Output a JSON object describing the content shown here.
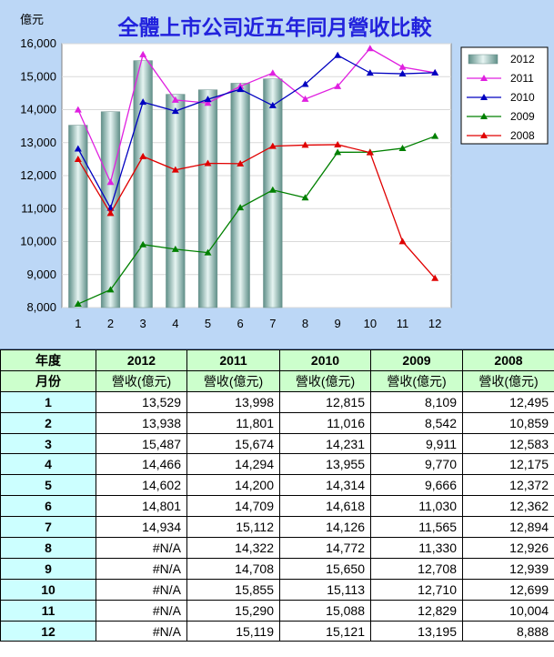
{
  "chart_data": {
    "type": "bar",
    "title": "全體上市公司近五年同月營收比較",
    "ylabel": "億元",
    "ylim": [
      8000,
      16000
    ],
    "y_ticks": [
      8000,
      9000,
      10000,
      11000,
      12000,
      13000,
      14000,
      15000,
      16000
    ],
    "y_tick_labels": [
      "8,000",
      "9,000",
      "10,000",
      "11,000",
      "12,000",
      "13,000",
      "14,000",
      "15,000",
      "16,000"
    ],
    "categories": [
      "1",
      "2",
      "3",
      "4",
      "5",
      "6",
      "7",
      "8",
      "9",
      "10",
      "11",
      "12"
    ],
    "grid": true,
    "legend_position": "right",
    "series": [
      {
        "name": "2012",
        "kind": "bar",
        "color": "#8fb8b0",
        "values": [
          13529,
          13938,
          15487,
          14466,
          14602,
          14801,
          14934,
          null,
          null,
          null,
          null,
          null
        ]
      },
      {
        "name": "2011",
        "kind": "line",
        "marker": "triangle",
        "color": "#e020e0",
        "values": [
          13998,
          11801,
          15674,
          14294,
          14200,
          14709,
          15112,
          14322,
          14708,
          15855,
          15290,
          15119
        ]
      },
      {
        "name": "2010",
        "kind": "line",
        "marker": "triangle",
        "color": "#0000c0",
        "values": [
          12815,
          11016,
          14231,
          13955,
          14314,
          14618,
          14126,
          14772,
          15650,
          15113,
          15088,
          15121
        ]
      },
      {
        "name": "2009",
        "kind": "line",
        "marker": "triangle",
        "color": "#008000",
        "values": [
          8109,
          8542,
          9911,
          9770,
          9666,
          11030,
          11565,
          11330,
          12708,
          12710,
          12829,
          13195
        ]
      },
      {
        "name": "2008",
        "kind": "line",
        "marker": "triangle",
        "color": "#e00000",
        "values": [
          12495,
          10859,
          12583,
          12175,
          12372,
          12362,
          12894,
          12926,
          12939,
          12699,
          10004,
          8888
        ]
      }
    ]
  },
  "table": {
    "year_header": "年度",
    "month_header": "月份",
    "years": [
      "2012",
      "2011",
      "2010",
      "2009",
      "2008"
    ],
    "unit_label": "營收(億元)",
    "rows": [
      {
        "month": "1",
        "values": [
          "13,529",
          "13,998",
          "12,815",
          "8,109",
          "12,495"
        ]
      },
      {
        "month": "2",
        "values": [
          "13,938",
          "11,801",
          "11,016",
          "8,542",
          "10,859"
        ]
      },
      {
        "month": "3",
        "values": [
          "15,487",
          "15,674",
          "14,231",
          "9,911",
          "12,583"
        ]
      },
      {
        "month": "4",
        "values": [
          "14,466",
          "14,294",
          "13,955",
          "9,770",
          "12,175"
        ]
      },
      {
        "month": "5",
        "values": [
          "14,602",
          "14,200",
          "14,314",
          "9,666",
          "12,372"
        ]
      },
      {
        "month": "6",
        "values": [
          "14,801",
          "14,709",
          "14,618",
          "11,030",
          "12,362"
        ]
      },
      {
        "month": "7",
        "values": [
          "14,934",
          "15,112",
          "14,126",
          "11,565",
          "12,894"
        ]
      },
      {
        "month": "8",
        "values": [
          "#N/A",
          "14,322",
          "14,772",
          "11,330",
          "12,926"
        ]
      },
      {
        "month": "9",
        "values": [
          "#N/A",
          "14,708",
          "15,650",
          "12,708",
          "12,939"
        ]
      },
      {
        "month": "10",
        "values": [
          "#N/A",
          "15,855",
          "15,113",
          "12,710",
          "12,699"
        ]
      },
      {
        "month": "11",
        "values": [
          "#N/A",
          "15,290",
          "15,088",
          "12,829",
          "10,004"
        ]
      },
      {
        "month": "12",
        "values": [
          "#N/A",
          "15,119",
          "15,121",
          "13,195",
          "8,888"
        ]
      }
    ]
  }
}
